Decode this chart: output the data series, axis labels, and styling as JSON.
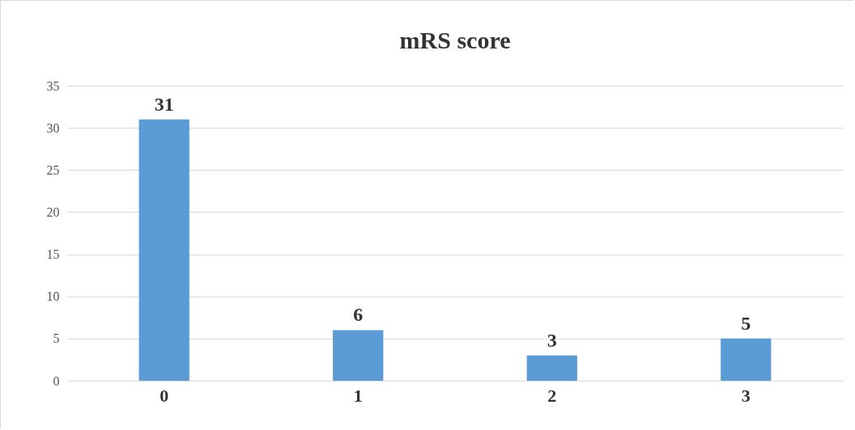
{
  "chart_data": {
    "type": "bar",
    "title": "mRS score",
    "categories": [
      "0",
      "1",
      "2",
      "3"
    ],
    "values": [
      31,
      6,
      3,
      5
    ],
    "color": "#5b9bd5",
    "ylim": [
      0,
      35
    ],
    "yticks": [
      0,
      5,
      10,
      15,
      20,
      25,
      30,
      35
    ],
    "grid": "y",
    "data_labels": true
  }
}
